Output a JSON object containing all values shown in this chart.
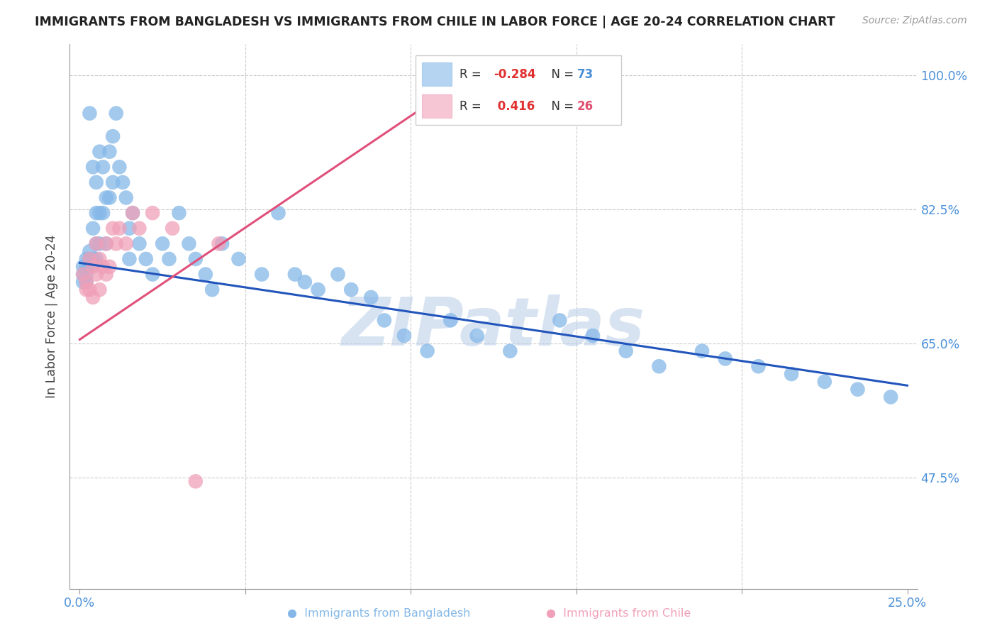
{
  "title": "IMMIGRANTS FROM BANGLADESH VS IMMIGRANTS FROM CHILE IN LABOR FORCE | AGE 20-24 CORRELATION CHART",
  "source": "Source: ZipAtlas.com",
  "ylabel": "In Labor Force | Age 20-24",
  "xlim": [
    -0.003,
    0.253
  ],
  "ylim": [
    0.33,
    1.04
  ],
  "yticks": [
    0.475,
    0.65,
    0.825,
    1.0
  ],
  "ytick_labels": [
    "47.5%",
    "65.0%",
    "82.5%",
    "100.0%"
  ],
  "xticks": [
    0.0,
    0.05,
    0.1,
    0.15,
    0.2,
    0.25
  ],
  "xtick_labels": [
    "0.0%",
    "",
    "",
    "",
    "",
    "25.0%"
  ],
  "bangladesh_color": "#85b8e8",
  "chile_color": "#f0a0b8",
  "line_blue": "#2255bb",
  "line_pink": "#e0507a",
  "watermark": "ZIPatlas",
  "watermark_color": "#c8d8f0",
  "bangladesh_R": -0.284,
  "bangladesh_N": 73,
  "chile_R": 0.416,
  "chile_N": 26,
  "blue_line_x": [
    0.0,
    0.25
  ],
  "blue_line_y": [
    0.755,
    0.595
  ],
  "pink_line_x": [
    0.0,
    0.12
  ],
  "pink_line_y": [
    0.655,
    1.005
  ],
  "bd_x": [
    0.001,
    0.001,
    0.001,
    0.002,
    0.002,
    0.002,
    0.002,
    0.003,
    0.003,
    0.003,
    0.003,
    0.004,
    0.004,
    0.004,
    0.005,
    0.005,
    0.005,
    0.005,
    0.006,
    0.006,
    0.006,
    0.007,
    0.007,
    0.008,
    0.008,
    0.009,
    0.009,
    0.01,
    0.01,
    0.011,
    0.012,
    0.013,
    0.014,
    0.015,
    0.015,
    0.016,
    0.018,
    0.02,
    0.022,
    0.025,
    0.027,
    0.03,
    0.033,
    0.035,
    0.038,
    0.04,
    0.043,
    0.048,
    0.055,
    0.06,
    0.065,
    0.068,
    0.072,
    0.078,
    0.082,
    0.088,
    0.092,
    0.098,
    0.105,
    0.112,
    0.12,
    0.13,
    0.145,
    0.155,
    0.165,
    0.175,
    0.188,
    0.195,
    0.205,
    0.215,
    0.225,
    0.235,
    0.245
  ],
  "bd_y": [
    0.75,
    0.74,
    0.73,
    0.76,
    0.75,
    0.74,
    0.73,
    0.95,
    0.77,
    0.76,
    0.75,
    0.88,
    0.8,
    0.76,
    0.86,
    0.82,
    0.78,
    0.76,
    0.9,
    0.82,
    0.78,
    0.88,
    0.82,
    0.84,
    0.78,
    0.9,
    0.84,
    0.92,
    0.86,
    0.95,
    0.88,
    0.86,
    0.84,
    0.8,
    0.76,
    0.82,
    0.78,
    0.76,
    0.74,
    0.78,
    0.76,
    0.82,
    0.78,
    0.76,
    0.74,
    0.72,
    0.78,
    0.76,
    0.74,
    0.82,
    0.74,
    0.73,
    0.72,
    0.74,
    0.72,
    0.71,
    0.68,
    0.66,
    0.64,
    0.68,
    0.66,
    0.64,
    0.68,
    0.66,
    0.64,
    0.62,
    0.64,
    0.63,
    0.62,
    0.61,
    0.6,
    0.59,
    0.58
  ],
  "ch_x": [
    0.001,
    0.002,
    0.002,
    0.003,
    0.003,
    0.004,
    0.004,
    0.005,
    0.005,
    0.006,
    0.006,
    0.007,
    0.008,
    0.008,
    0.009,
    0.01,
    0.011,
    0.012,
    0.014,
    0.016,
    0.018,
    0.022,
    0.028,
    0.035,
    0.042,
    0.11
  ],
  "ch_y": [
    0.74,
    0.73,
    0.72,
    0.76,
    0.72,
    0.75,
    0.71,
    0.78,
    0.74,
    0.76,
    0.72,
    0.75,
    0.78,
    0.74,
    0.75,
    0.8,
    0.78,
    0.8,
    0.78,
    0.82,
    0.8,
    0.82,
    0.8,
    0.47,
    0.78,
    0.98
  ]
}
